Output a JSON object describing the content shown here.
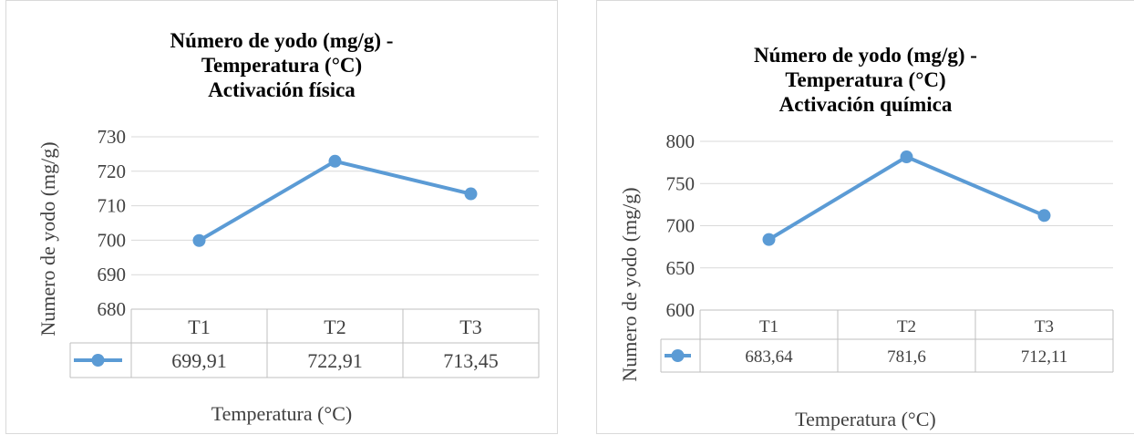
{
  "chart_data": [
    {
      "type": "line",
      "title_lines": [
        "Número de yodo (mg/g) -",
        "Temperatura (°C)",
        "Activación física"
      ],
      "xlabel": "Temperatura (°C)",
      "ylabel": "Numero de yodo (mg/g)",
      "categories": [
        "T1",
        "T2",
        "T3"
      ],
      "series": [
        {
          "values": [
            699.91,
            722.91,
            713.45
          ]
        }
      ],
      "data_table": [
        "699,91",
        "722,91",
        "713,45"
      ],
      "yticks": [
        680,
        690,
        700,
        710,
        720,
        730
      ],
      "ylim": [
        680,
        730
      ],
      "grid": true,
      "legend": "data-table",
      "colors": {
        "line": "#5b9bd5",
        "grid": "#d9d9d9",
        "table": "#bfbfbf"
      }
    },
    {
      "type": "line",
      "title_lines": [
        "Número de yodo (mg/g) -",
        "Temperatura (°C)",
        "Activación química"
      ],
      "xlabel": "Temperatura (°C)",
      "ylabel": "Numero de yodo (mg/g)",
      "categories": [
        "T1",
        "T2",
        "T3"
      ],
      "series": [
        {
          "values": [
            683.64,
            781.6,
            712.11
          ]
        }
      ],
      "data_table": [
        "683,64",
        "781,6",
        "712,11"
      ],
      "yticks": [
        600,
        650,
        700,
        750,
        800
      ],
      "ylim": [
        600,
        800
      ],
      "grid": true,
      "legend": "data-table",
      "colors": {
        "line": "#5b9bd5",
        "grid": "#d9d9d9",
        "table": "#bfbfbf"
      }
    }
  ]
}
